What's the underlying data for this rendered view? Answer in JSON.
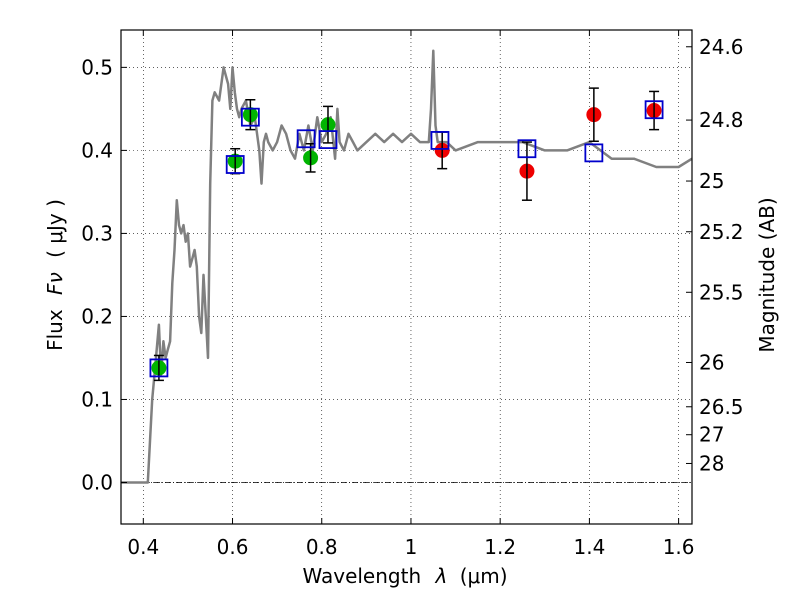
{
  "chart_data": {
    "type": "scatter",
    "title": "",
    "xlabel": "Wavelength",
    "xlabel_symbol": "λ",
    "xlabel_unit": "(μm)",
    "ylabel": "Flux",
    "ylabel_symbol": "Fν",
    "ylabel_unit": "( μJy )",
    "y2label": "Magnitude (AB)",
    "xlim": [
      0.35,
      1.63
    ],
    "ylim": [
      -0.05,
      0.545
    ],
    "grid": true,
    "x_ticks": [
      {
        "value": 0.4,
        "label": "0.4"
      },
      {
        "value": 0.6,
        "label": "0.6"
      },
      {
        "value": 0.8,
        "label": "0.8"
      },
      {
        "value": 1.0,
        "label": "1"
      },
      {
        "value": 1.2,
        "label": "1.2"
      },
      {
        "value": 1.4,
        "label": "1.4"
      },
      {
        "value": 1.6,
        "label": "1.6"
      }
    ],
    "y_ticks": [
      {
        "value": 0.0,
        "label": "0.0"
      },
      {
        "value": 0.1,
        "label": "0.1"
      },
      {
        "value": 0.2,
        "label": "0.2"
      },
      {
        "value": 0.3,
        "label": "0.3"
      },
      {
        "value": 0.4,
        "label": "0.4"
      },
      {
        "value": 0.5,
        "label": "0.5"
      }
    ],
    "y2_ticks": [
      {
        "value": 24.6,
        "label": "24.6"
      },
      {
        "value": 24.8,
        "label": "24.8"
      },
      {
        "value": 25,
        "label": "25"
      },
      {
        "value": 25.2,
        "label": "25.2"
      },
      {
        "value": 25.5,
        "label": "25.5"
      },
      {
        "value": 26,
        "label": "26"
      },
      {
        "value": 26.5,
        "label": "26.5"
      },
      {
        "value": 27,
        "label": "27"
      },
      {
        "value": 28,
        "label": "28"
      }
    ],
    "colors": {
      "model": "#808080",
      "green_points": "#00b400",
      "red_points": "#ee0000",
      "model_boxes": "#0000cc",
      "error_bars": "#000000"
    },
    "model_spectrum": {
      "x": [
        0.35,
        0.41,
        0.415,
        0.42,
        0.425,
        0.43,
        0.435,
        0.44,
        0.445,
        0.45,
        0.455,
        0.46,
        0.465,
        0.47,
        0.475,
        0.48,
        0.485,
        0.49,
        0.495,
        0.5,
        0.505,
        0.51,
        0.515,
        0.52,
        0.525,
        0.53,
        0.535,
        0.54,
        0.545,
        0.55,
        0.555,
        0.56,
        0.57,
        0.58,
        0.59,
        0.595,
        0.6,
        0.605,
        0.61,
        0.615,
        0.62,
        0.63,
        0.64,
        0.65,
        0.66,
        0.665,
        0.67,
        0.675,
        0.68,
        0.69,
        0.7,
        0.71,
        0.72,
        0.73,
        0.74,
        0.75,
        0.76,
        0.77,
        0.78,
        0.79,
        0.8,
        0.81,
        0.82,
        0.83,
        0.835,
        0.84,
        0.85,
        0.86,
        0.87,
        0.88,
        0.9,
        0.92,
        0.94,
        0.96,
        0.98,
        1.0,
        1.02,
        1.04,
        1.045,
        1.05,
        1.055,
        1.06,
        1.08,
        1.1,
        1.15,
        1.2,
        1.25,
        1.3,
        1.35,
        1.4,
        1.45,
        1.5,
        1.55,
        1.6,
        1.63
      ],
      "y": [
        0.0,
        0.0,
        0.05,
        0.1,
        0.13,
        0.16,
        0.19,
        0.13,
        0.17,
        0.15,
        0.16,
        0.17,
        0.24,
        0.28,
        0.34,
        0.31,
        0.3,
        0.31,
        0.29,
        0.3,
        0.26,
        0.27,
        0.28,
        0.26,
        0.2,
        0.18,
        0.25,
        0.2,
        0.15,
        0.36,
        0.46,
        0.47,
        0.46,
        0.5,
        0.48,
        0.45,
        0.5,
        0.47,
        0.45,
        0.44,
        0.45,
        0.46,
        0.43,
        0.44,
        0.4,
        0.36,
        0.41,
        0.42,
        0.41,
        0.4,
        0.41,
        0.43,
        0.42,
        0.4,
        0.39,
        0.42,
        0.4,
        0.43,
        0.4,
        0.44,
        0.41,
        0.42,
        0.44,
        0.39,
        0.45,
        0.41,
        0.4,
        0.42,
        0.41,
        0.4,
        0.41,
        0.42,
        0.41,
        0.42,
        0.41,
        0.42,
        0.41,
        0.41,
        0.45,
        0.52,
        0.43,
        0.41,
        0.41,
        0.4,
        0.41,
        0.41,
        0.41,
        0.4,
        0.4,
        0.41,
        0.39,
        0.39,
        0.38,
        0.38,
        0.39
      ]
    },
    "series": [
      {
        "marker": "circle",
        "color": "#00b400",
        "points": [
          {
            "x": 0.435,
            "y": 0.138,
            "err": 0.015
          },
          {
            "x": 0.606,
            "y": 0.387,
            "err": 0.015
          },
          {
            "x": 0.64,
            "y": 0.443,
            "err": 0.018
          },
          {
            "x": 0.775,
            "y": 0.391,
            "err": 0.017
          },
          {
            "x": 0.814,
            "y": 0.431,
            "err": 0.022
          }
        ]
      },
      {
        "marker": "circle",
        "color": "#ee0000",
        "points": [
          {
            "x": 1.07,
            "y": 0.4,
            "err": 0.022
          },
          {
            "x": 1.26,
            "y": 0.375,
            "err": 0.035
          },
          {
            "x": 1.41,
            "y": 0.443,
            "err": 0.032
          },
          {
            "x": 1.545,
            "y": 0.448,
            "err": 0.023
          }
        ]
      },
      {
        "marker": "square-open",
        "color": "#0000cc",
        "points": [
          {
            "x": 0.435,
            "y": 0.138
          },
          {
            "x": 0.606,
            "y": 0.383
          },
          {
            "x": 0.64,
            "y": 0.44
          },
          {
            "x": 0.765,
            "y": 0.414
          },
          {
            "x": 0.814,
            "y": 0.413
          },
          {
            "x": 1.065,
            "y": 0.412
          },
          {
            "x": 1.26,
            "y": 0.402
          },
          {
            "x": 1.41,
            "y": 0.397
          },
          {
            "x": 1.545,
            "y": 0.449
          }
        ]
      }
    ]
  }
}
